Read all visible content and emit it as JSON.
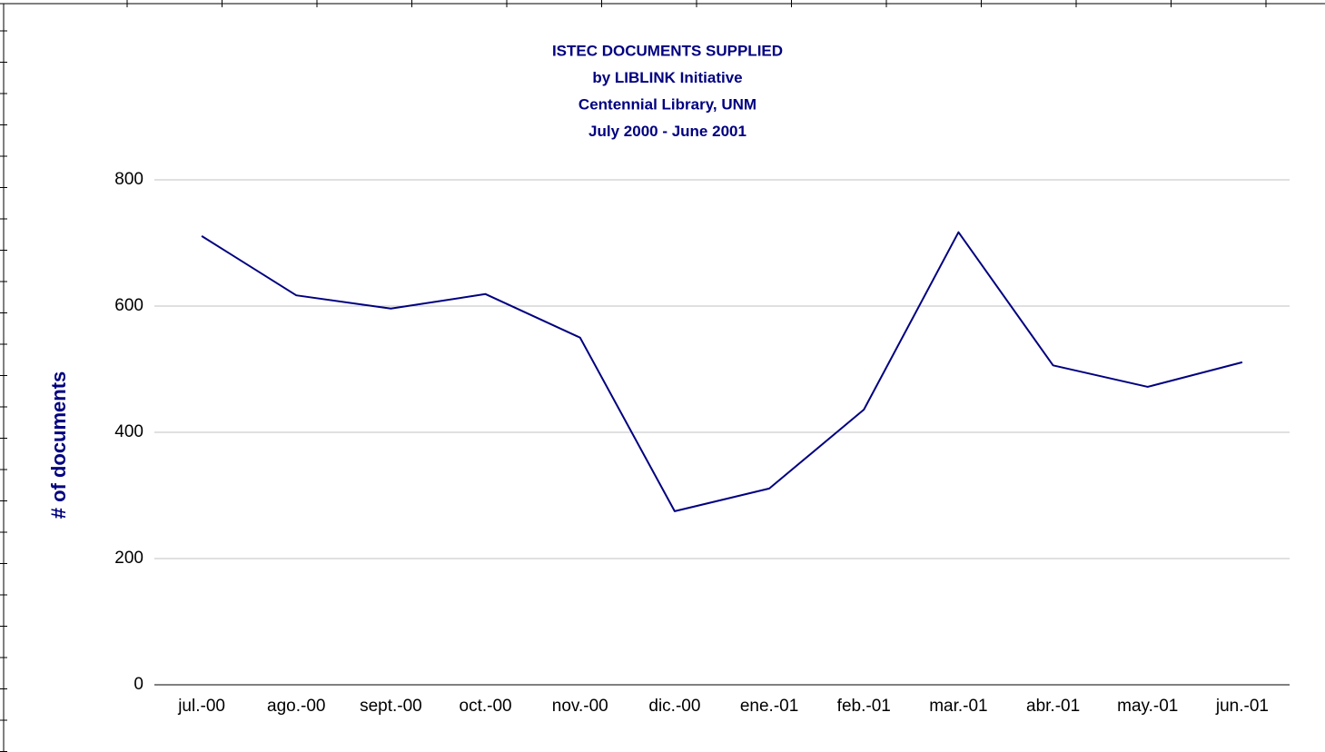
{
  "chart_data": {
    "type": "line",
    "title": [
      "ISTEC DOCUMENTS SUPPLIED",
      "by LIBLINK Initiative",
      "Centennial Library, UNM",
      "July 2000 - June 2001"
    ],
    "y_label": "# of documents",
    "categories": [
      "jul.-00",
      "ago.-00",
      "sept.-00",
      "oct.-00",
      "nov.-00",
      "dic.-00",
      "ene.-01",
      "feb.-01",
      "mar.-01",
      "abr.-01",
      "may.-01",
      "jun.-01"
    ],
    "series": [
      {
        "color": "#000080",
        "values": [
          711,
          617,
          596,
          619,
          550,
          275,
          311,
          436,
          717,
          506,
          472,
          511
        ]
      }
    ],
    "ylim": [
      0,
      800
    ],
    "yticks": [
      0,
      200,
      400,
      600,
      800
    ],
    "grid": true
  }
}
